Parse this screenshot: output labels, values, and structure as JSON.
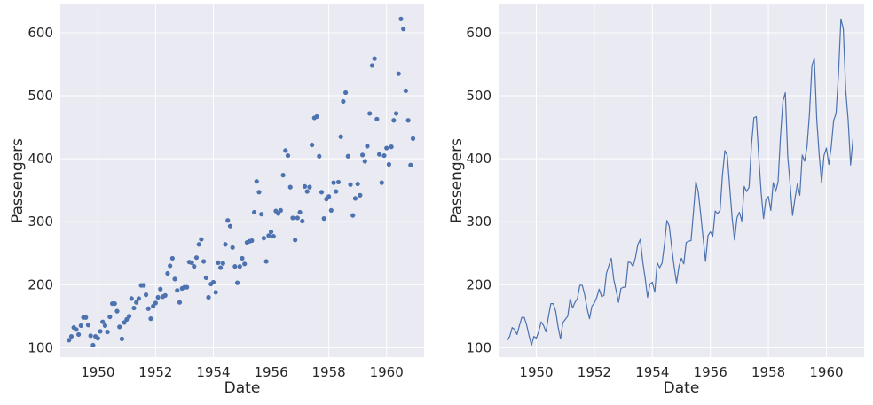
{
  "colors": {
    "series": "#4c72b0",
    "panel_bg": "#eaeaf2",
    "grid": "#ffffff",
    "text": "#262626"
  },
  "chart_data": [
    {
      "type": "scatter",
      "xlabel": "Date",
      "ylabel": "Passengers",
      "xlim": [
        1948.7,
        1961.3
      ],
      "ylim": [
        85,
        645
      ],
      "xticks": [
        "1950",
        "1952",
        "1954",
        "1956",
        "1958",
        "1960"
      ],
      "yticks": [
        "100",
        "200",
        "300",
        "400",
        "500",
        "600"
      ],
      "grid": true,
      "series": [
        {
          "x": [
            "1949-01",
            "1949-02",
            "1949-03",
            "1949-04",
            "1949-05",
            "1949-06",
            "1949-07",
            "1949-08",
            "1949-09",
            "1949-10",
            "1949-11",
            "1949-12",
            "1950-01",
            "1950-02",
            "1950-03",
            "1950-04",
            "1950-05",
            "1950-06",
            "1950-07",
            "1950-08",
            "1950-09",
            "1950-10",
            "1950-11",
            "1950-12",
            "1951-01",
            "1951-02",
            "1951-03",
            "1951-04",
            "1951-05",
            "1951-06",
            "1951-07",
            "1951-08",
            "1951-09",
            "1951-10",
            "1951-11",
            "1951-12",
            "1952-01",
            "1952-02",
            "1952-03",
            "1952-04",
            "1952-05",
            "1952-06",
            "1952-07",
            "1952-08",
            "1952-09",
            "1952-10",
            "1952-11",
            "1952-12",
            "1953-01",
            "1953-02",
            "1953-03",
            "1953-04",
            "1953-05",
            "1953-06",
            "1953-07",
            "1953-08",
            "1953-09",
            "1953-10",
            "1953-11",
            "1953-12",
            "1954-01",
            "1954-02",
            "1954-03",
            "1954-04",
            "1954-05",
            "1954-06",
            "1954-07",
            "1954-08",
            "1954-09",
            "1954-10",
            "1954-11",
            "1954-12",
            "1955-01",
            "1955-02",
            "1955-03",
            "1955-04",
            "1955-05",
            "1955-06",
            "1955-07",
            "1955-08",
            "1955-09",
            "1955-10",
            "1955-11",
            "1955-12",
            "1956-01",
            "1956-02",
            "1956-03",
            "1956-04",
            "1956-05",
            "1956-06",
            "1956-07",
            "1956-08",
            "1956-09",
            "1956-10",
            "1956-11",
            "1956-12",
            "1957-01",
            "1957-02",
            "1957-03",
            "1957-04",
            "1957-05",
            "1957-06",
            "1957-07",
            "1957-08",
            "1957-09",
            "1957-10",
            "1957-11",
            "1957-12",
            "1958-01",
            "1958-02",
            "1958-03",
            "1958-04",
            "1958-05",
            "1958-06",
            "1958-07",
            "1958-08",
            "1958-09",
            "1958-10",
            "1958-11",
            "1958-12",
            "1959-01",
            "1959-02",
            "1959-03",
            "1959-04",
            "1959-05",
            "1959-06",
            "1959-07",
            "1959-08",
            "1959-09",
            "1959-10",
            "1959-11",
            "1959-12",
            "1960-01",
            "1960-02",
            "1960-03",
            "1960-04",
            "1960-05",
            "1960-06",
            "1960-07",
            "1960-08",
            "1960-09",
            "1960-10",
            "1960-11",
            "1960-12"
          ],
          "y": [
            112,
            118,
            132,
            129,
            121,
            135,
            148,
            148,
            136,
            119,
            104,
            118,
            115,
            126,
            141,
            135,
            125,
            149,
            170,
            170,
            158,
            133,
            114,
            140,
            145,
            150,
            178,
            163,
            172,
            178,
            199,
            199,
            184,
            162,
            146,
            166,
            171,
            180,
            193,
            181,
            183,
            218,
            230,
            242,
            209,
            191,
            172,
            194,
            196,
            196,
            236,
            235,
            229,
            243,
            264,
            272,
            237,
            211,
            180,
            201,
            204,
            188,
            235,
            227,
            234,
            264,
            302,
            293,
            259,
            229,
            203,
            229,
            242,
            233,
            267,
            269,
            270,
            315,
            364,
            347,
            312,
            274,
            237,
            278,
            284,
            277,
            317,
            313,
            318,
            374,
            413,
            405,
            355,
            306,
            271,
            306,
            315,
            301,
            356,
            348,
            355,
            422,
            465,
            467,
            404,
            347,
            305,
            336,
            340,
            318,
            362,
            348,
            363,
            435,
            491,
            505,
            404,
            359,
            310,
            337,
            360,
            342,
            406,
            396,
            420,
            472,
            548,
            559,
            463,
            407,
            362,
            405,
            417,
            391,
            419,
            461,
            472,
            535,
            622,
            606,
            508,
            461,
            390,
            432
          ]
        }
      ]
    },
    {
      "type": "line",
      "xlabel": "Date",
      "ylabel": "Passengers",
      "xlim": [
        1948.7,
        1961.3
      ],
      "ylim": [
        85,
        645
      ],
      "xticks": [
        "1950",
        "1952",
        "1954",
        "1956",
        "1958",
        "1960"
      ],
      "yticks": [
        "100",
        "200",
        "300",
        "400",
        "500",
        "600"
      ],
      "grid": true,
      "series": "same as chart 1"
    }
  ]
}
